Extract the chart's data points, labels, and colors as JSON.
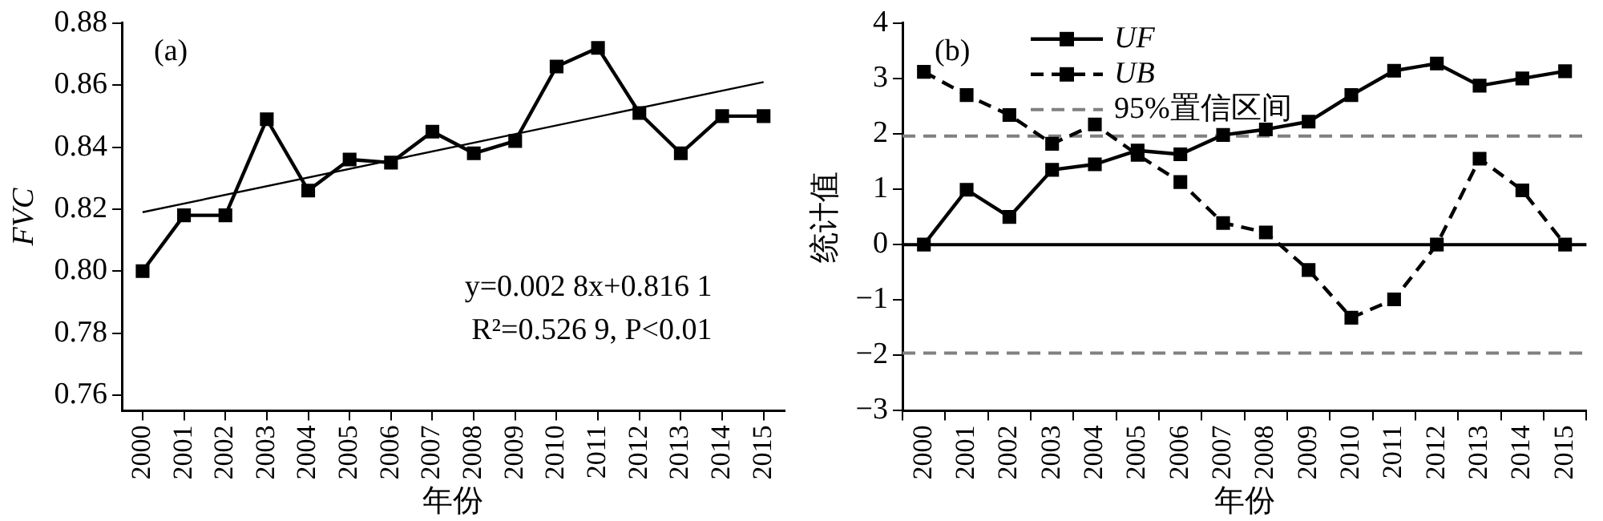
{
  "chart_data": [
    {
      "type": "line",
      "xlabel": "年份",
      "ylabel": "FVC",
      "x": [
        2000,
        2001,
        2002,
        2003,
        2004,
        2005,
        2006,
        2007,
        2008,
        2009,
        2010,
        2011,
        2012,
        2013,
        2014,
        2015
      ],
      "xlim": [
        1999.5,
        2015.5
      ],
      "xticks": [
        2000,
        2001,
        2002,
        2003,
        2004,
        2005,
        2006,
        2007,
        2008,
        2009,
        2010,
        2011,
        2012,
        2013,
        2014,
        2015
      ],
      "series": [
        {
          "color": "#000000",
          "values": [
            0.8,
            0.818,
            0.818,
            0.849,
            0.826,
            0.836,
            0.835,
            0.845,
            0.838,
            0.842,
            0.866,
            0.872,
            0.851,
            0.838,
            0.85,
            0.85
          ]
        },
        {
          "type": "line",
          "marker": "none",
          "color": "#000000",
          "x": [
            2000,
            2015
          ],
          "values": [
            0.819,
            0.861
          ]
        }
      ],
      "ylim": [
        0.755,
        0.88
      ],
      "yticks": [
        0.76,
        0.78,
        {
          "value": 0.8,
          "label": "0.80"
        },
        0.82,
        0.84,
        0.86,
        0.88
      ],
      "marker": "square",
      "line_style": "solid",
      "grid": false,
      "legend": false,
      "annotations": [
        "(a)",
        "y=0.002 8x+0.816 1",
        "R²=0.526 9, P<0.01"
      ]
    },
    {
      "type": "line",
      "xlabel": "年份",
      "ylabel": "统计值",
      "categories": [
        "2000",
        "2001",
        "2002",
        "2003",
        "2004",
        "2005",
        "2006",
        "2007",
        "2008",
        "2009",
        "2010",
        "2011",
        "2012",
        "2013",
        "2014",
        "2015"
      ],
      "series": [
        {
          "name": "UF",
          "color": "#000000",
          "line_style": "solid",
          "values": [
            0,
            0.99,
            0.5,
            1.35,
            1.45,
            1.7,
            1.63,
            1.98,
            2.08,
            2.22,
            2.7,
            3.14,
            3.27,
            2.87,
            3.0,
            3.13
          ]
        },
        {
          "name": "UB",
          "color": "#000000",
          "line_style": "dashed",
          "values": [
            3.12,
            2.7,
            2.34,
            1.82,
            2.17,
            1.62,
            1.13,
            0.39,
            0.22,
            -0.46,
            -1.32,
            -0.99,
            0,
            1.55,
            0.98,
            0
          ]
        }
      ],
      "ylim": [
        -3,
        4
      ],
      "yticks": [
        {
          "value": -3,
          "label": "−3"
        },
        {
          "value": -2,
          "label": "−2"
        },
        {
          "value": -1,
          "label": "−1"
        },
        0,
        1,
        2,
        3,
        4
      ],
      "ref_lines": [
        {
          "axis": "y",
          "value": 1.96,
          "label": "95%置信区间",
          "color": "#808080",
          "line_style": "dashed"
        },
        {
          "axis": "y",
          "value": -1.96,
          "label": null,
          "color": "#808080",
          "line_style": "dashed"
        },
        {
          "axis": "y",
          "value": 0,
          "label": null,
          "color": "#000000",
          "line_style": "solid"
        }
      ],
      "marker": "square",
      "grid": false,
      "legend": "top",
      "annotations": [
        "(b)"
      ]
    }
  ]
}
